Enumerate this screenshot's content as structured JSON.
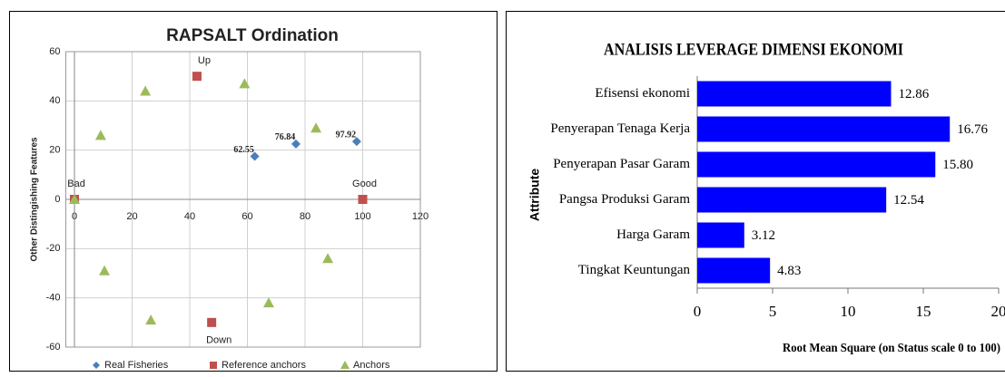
{
  "chart_data": [
    {
      "type": "scatter",
      "title": "RAPSALT Ordination",
      "y_label": "Other Distingishing Features",
      "xlim": [
        -3,
        120
      ],
      "xticks": [
        0,
        20,
        40,
        60,
        80,
        100,
        120
      ],
      "ylim": [
        -60,
        60
      ],
      "yticks": [
        -60,
        -40,
        -20,
        0,
        20,
        40,
        60
      ],
      "grid": true,
      "legend": "bottom",
      "series": [
        {
          "name": "Real Fisheries",
          "color": "#4a7ebb",
          "marker": "diamond",
          "x": [
            62.55,
            76.84,
            97.92
          ],
          "values": [
            17.5,
            22.5,
            23.5
          ]
        },
        {
          "name": "Reference anchors",
          "color": "#c0504d",
          "marker": "square",
          "x": [
            0,
            100,
            42.5,
            47.6
          ],
          "values": [
            0,
            0,
            50,
            -50
          ],
          "point_labels": [
            "Bad",
            "Good",
            "Up",
            "Down"
          ]
        },
        {
          "name": "Anchors",
          "color": "#9bbb59",
          "marker": "triangle",
          "x": [
            0,
            9.1,
            10.4,
            24.6,
            26.5,
            59,
            67.4,
            83.8,
            87.9
          ],
          "values": [
            0,
            26,
            -29,
            44,
            -49,
            47,
            -42,
            29,
            -24
          ]
        }
      ]
    },
    {
      "type": "hbar",
      "title": "ANALISIS LEVERAGE DIMENSI EKONOMI",
      "x_label": "Root Mean Square (on Status scale 0 to 100)",
      "y_label": "Attribute",
      "categories": [
        "Efisensi ekonomi",
        "Penyerapan Tenaga Kerja",
        "Penyerapan Pasar Garam",
        "Pangsa Produksi Garam",
        "Harga Garam",
        "Tingkat Keuntungan"
      ],
      "values": [
        12.86,
        16.76,
        15.8,
        12.54,
        3.12,
        4.83
      ],
      "value_labels": [
        "12.86",
        "16.76",
        "15.80",
        "12.54",
        "3.12",
        "4.83"
      ],
      "color": "#0000ff",
      "xlim": [
        0,
        20
      ],
      "xticks": [
        0,
        5,
        10,
        15,
        20
      ]
    }
  ]
}
